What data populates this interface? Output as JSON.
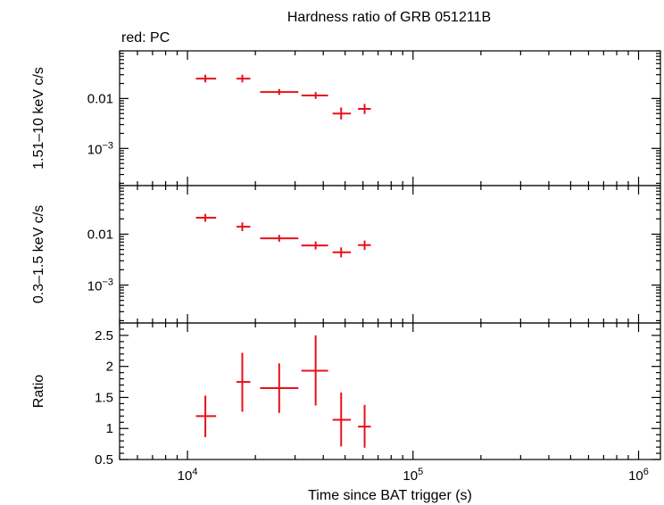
{
  "chart_data": {
    "type": "scatter",
    "title": "Hardness ratio of GRB 051211B",
    "legend": "red: PC",
    "xlabel": "Time since BAT trigger (s)",
    "xscale": "log",
    "xlim": [
      5000,
      1250000
    ],
    "x_tick_labels": [
      {
        "value": 10000,
        "base": "10",
        "exp": "4"
      },
      {
        "value": 100000,
        "base": "10",
        "exp": "5"
      },
      {
        "value": 1000000,
        "base": "10",
        "exp": "6"
      }
    ],
    "series_color": "#e8101a",
    "panels": [
      {
        "name": "hard-band",
        "ylabel": "1.51–10 keV c/s",
        "yscale": "log",
        "ylim": [
          0.00018,
          0.09
        ],
        "y_tick_labels": [
          {
            "value": 0.01,
            "text": "0.01"
          },
          {
            "value": 0.001,
            "base": "10",
            "exp": "−3"
          }
        ],
        "points": [
          {
            "x": 12000,
            "xlo": 10900,
            "xhi": 13400,
            "y": 0.025,
            "ylo": 0.021,
            "yhi": 0.03
          },
          {
            "x": 17500,
            "xlo": 16500,
            "xhi": 19000,
            "y": 0.025,
            "ylo": 0.021,
            "yhi": 0.03
          },
          {
            "x": 25500,
            "xlo": 21000,
            "xhi": 31000,
            "y": 0.0135,
            "ylo": 0.0118,
            "yhi": 0.0155
          },
          {
            "x": 37000,
            "xlo": 32000,
            "xhi": 42000,
            "y": 0.0115,
            "ylo": 0.0098,
            "yhi": 0.0135
          },
          {
            "x": 48000,
            "xlo": 44000,
            "xhi": 53000,
            "y": 0.005,
            "ylo": 0.0038,
            "yhi": 0.0066
          },
          {
            "x": 61000,
            "xlo": 57000,
            "xhi": 65000,
            "y": 0.0062,
            "ylo": 0.0049,
            "yhi": 0.0078
          }
        ]
      },
      {
        "name": "soft-band",
        "ylabel": "0.3–1.5 keV c/s",
        "yscale": "log",
        "ylim": [
          0.00018,
          0.09
        ],
        "y_tick_labels": [
          {
            "value": 0.01,
            "text": "0.01"
          },
          {
            "value": 0.001,
            "base": "10",
            "exp": "−3"
          }
        ],
        "points": [
          {
            "x": 12000,
            "xlo": 10900,
            "xhi": 13400,
            "y": 0.021,
            "ylo": 0.0175,
            "yhi": 0.025
          },
          {
            "x": 17500,
            "xlo": 16500,
            "xhi": 19000,
            "y": 0.014,
            "ylo": 0.0115,
            "yhi": 0.017
          },
          {
            "x": 25500,
            "xlo": 21000,
            "xhi": 31000,
            "y": 0.0083,
            "ylo": 0.0071,
            "yhi": 0.0097
          },
          {
            "x": 37000,
            "xlo": 32000,
            "xhi": 42000,
            "y": 0.006,
            "ylo": 0.005,
            "yhi": 0.0072
          },
          {
            "x": 48000,
            "xlo": 44000,
            "xhi": 53000,
            "y": 0.0044,
            "ylo": 0.0035,
            "yhi": 0.0055
          },
          {
            "x": 61000,
            "xlo": 57000,
            "xhi": 65000,
            "y": 0.0061,
            "ylo": 0.0049,
            "yhi": 0.0075
          }
        ]
      },
      {
        "name": "ratio",
        "ylabel": "Ratio",
        "yscale": "linear",
        "ylim": [
          0.5,
          2.7
        ],
        "y_tick_labels": [
          {
            "value": 0.5,
            "text": "0.5"
          },
          {
            "value": 1,
            "text": "1"
          },
          {
            "value": 1.5,
            "text": "1.5"
          },
          {
            "value": 2,
            "text": "2"
          },
          {
            "value": 2.5,
            "text": "2.5"
          }
        ],
        "points": [
          {
            "x": 12000,
            "xlo": 10900,
            "xhi": 13400,
            "y": 1.2,
            "ylo": 0.86,
            "yhi": 1.53
          },
          {
            "x": 17500,
            "xlo": 16500,
            "xhi": 19000,
            "y": 1.75,
            "ylo": 1.27,
            "yhi": 2.22
          },
          {
            "x": 25500,
            "xlo": 21000,
            "xhi": 31000,
            "y": 1.65,
            "ylo": 1.25,
            "yhi": 2.05
          },
          {
            "x": 37000,
            "xlo": 32000,
            "xhi": 42000,
            "y": 1.93,
            "ylo": 1.37,
            "yhi": 2.5
          },
          {
            "x": 48000,
            "xlo": 44000,
            "xhi": 53000,
            "y": 1.14,
            "ylo": 0.71,
            "yhi": 1.58
          },
          {
            "x": 61000,
            "xlo": 57000,
            "xhi": 65000,
            "y": 1.03,
            "ylo": 0.69,
            "yhi": 1.38
          }
        ]
      }
    ]
  }
}
